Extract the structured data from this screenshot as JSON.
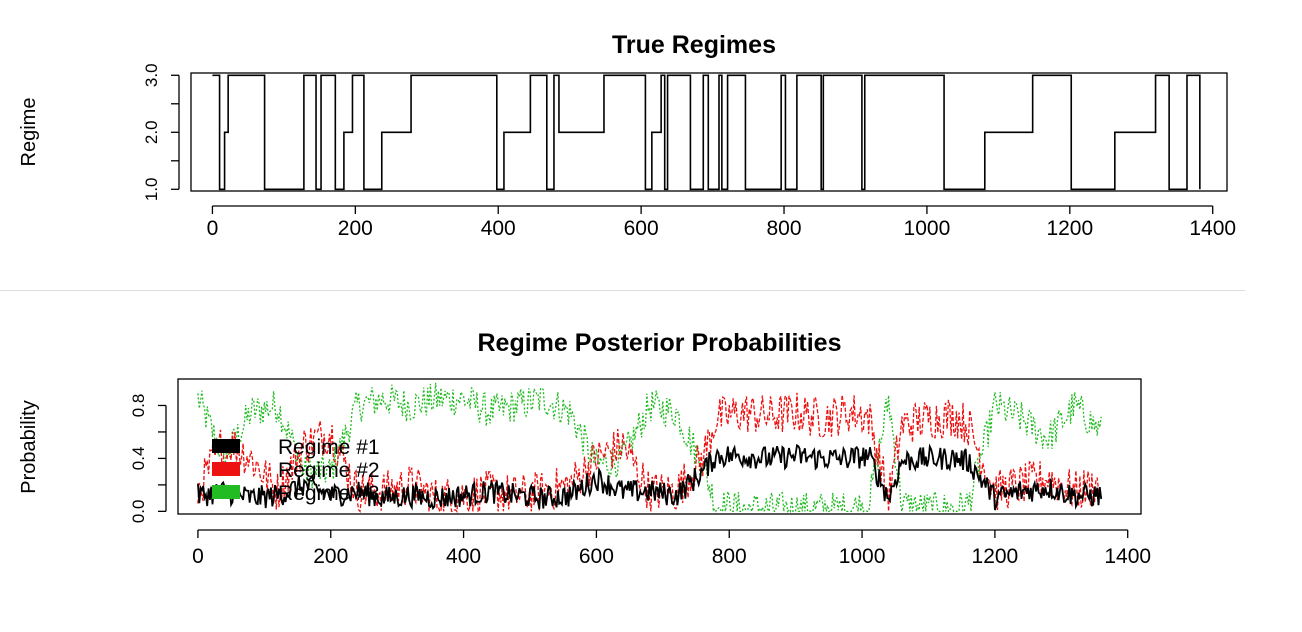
{
  "chart_data": [
    {
      "type": "line",
      "title": "True Regimes",
      "xlabel": "",
      "ylabel": "Regime",
      "xlim": [
        -30,
        1420
      ],
      "ylim": [
        0.97,
        3.04
      ],
      "grid": false,
      "x_ticks": [
        0,
        200,
        400,
        600,
        800,
        1000,
        1200,
        1400
      ],
      "x_tick_labels": [
        "0",
        "200",
        "400",
        "600",
        "800",
        "1000",
        "1200",
        "1400"
      ],
      "y_ticks": [
        1.0,
        1.5,
        2.0,
        2.5,
        3.0
      ],
      "y_tick_labels": [
        "1.0",
        "",
        "2.0",
        "",
        "3.0"
      ],
      "series": [
        {
          "color": "#000000",
          "step": true,
          "x": [
            0,
            10,
            17,
            22,
            28,
            73,
            128,
            145,
            152,
            172,
            184,
            196,
            212,
            237,
            278,
            398,
            408,
            419,
            445,
            468,
            478,
            485,
            548,
            606,
            615,
            628,
            633,
            637,
            669,
            687,
            694,
            709,
            713,
            721,
            746,
            796,
            802,
            818,
            852,
            855,
            909,
            913,
            1024,
            1081,
            1148,
            1202,
            1263,
            1320,
            1339,
            1364,
            1382
          ],
          "y": [
            3,
            1,
            2,
            3,
            3,
            1,
            3,
            1,
            3,
            1,
            2,
            3,
            1,
            2,
            3,
            1,
            2,
            2,
            3,
            1,
            3,
            2,
            3,
            1,
            2,
            3,
            1,
            3,
            1,
            3,
            1,
            3,
            1,
            3,
            1,
            3,
            1,
            3,
            1,
            3,
            1,
            3,
            1,
            2,
            3,
            1,
            2,
            3,
            1,
            3,
            1
          ]
        }
      ]
    },
    {
      "type": "line",
      "title": "Regime Posterior Probabilities",
      "xlabel": "",
      "ylabel": "Probability",
      "xlim": [
        -30,
        1420
      ],
      "ylim": [
        -0.02,
        1.0
      ],
      "grid": false,
      "x_ticks": [
        0,
        200,
        400,
        600,
        800,
        1000,
        1200,
        1400
      ],
      "x_tick_labels": [
        "0",
        "200",
        "400",
        "600",
        "800",
        "1000",
        "1200",
        "1400"
      ],
      "y_ticks": [
        0.0,
        0.2,
        0.4,
        0.6,
        0.8
      ],
      "y_tick_labels": [
        "0.0",
        "",
        "0.4",
        "",
        "0.8"
      ],
      "legend": {
        "placement": "left",
        "entries": [
          {
            "name": "Regime #1",
            "color": "#000000"
          },
          {
            "name": "Regime #2",
            "color": "#ee1111"
          },
          {
            "name": "Regime #3",
            "color": "#22bb22"
          }
        ]
      },
      "series": [
        {
          "name": "Regime #1",
          "color": "#000000",
          "style": "solid",
          "x": [
            0,
            40,
            80,
            120,
            160,
            200,
            240,
            280,
            320,
            360,
            400,
            440,
            480,
            520,
            560,
            600,
            640,
            680,
            720,
            760,
            780,
            820,
            860,
            900,
            940,
            980,
            1010,
            1040,
            1060,
            1100,
            1140,
            1160,
            1200,
            1240,
            1280,
            1320,
            1360
          ],
          "y": [
            0.12,
            0.15,
            0.1,
            0.12,
            0.2,
            0.12,
            0.15,
            0.1,
            0.12,
            0.1,
            0.12,
            0.15,
            0.12,
            0.1,
            0.12,
            0.25,
            0.15,
            0.15,
            0.12,
            0.3,
            0.42,
            0.42,
            0.4,
            0.42,
            0.4,
            0.4,
            0.42,
            0.1,
            0.38,
            0.4,
            0.4,
            0.38,
            0.1,
            0.15,
            0.18,
            0.12,
            0.12
          ]
        },
        {
          "name": "Regime #2",
          "color": "#ee1111",
          "style": "dashed",
          "x": [
            0,
            40,
            80,
            120,
            160,
            200,
            240,
            280,
            320,
            360,
            400,
            440,
            480,
            520,
            560,
            600,
            640,
            680,
            720,
            760,
            780,
            820,
            860,
            900,
            940,
            980,
            1010,
            1040,
            1060,
            1100,
            1140,
            1160,
            1200,
            1240,
            1280,
            1320,
            1360
          ],
          "y": [
            0.15,
            0.55,
            0.4,
            0.15,
            0.5,
            0.6,
            0.15,
            0.15,
            0.2,
            0.1,
            0.12,
            0.15,
            0.12,
            0.15,
            0.2,
            0.4,
            0.5,
            0.15,
            0.15,
            0.4,
            0.7,
            0.75,
            0.72,
            0.75,
            0.7,
            0.75,
            0.72,
            0.1,
            0.65,
            0.7,
            0.72,
            0.65,
            0.15,
            0.2,
            0.25,
            0.15,
            0.2
          ]
        },
        {
          "name": "Regime #3",
          "color": "#22bb22",
          "style": "dotted",
          "x": [
            0,
            40,
            80,
            120,
            160,
            200,
            240,
            280,
            320,
            360,
            400,
            440,
            480,
            520,
            560,
            600,
            640,
            680,
            720,
            760,
            780,
            820,
            860,
            900,
            940,
            980,
            1010,
            1040,
            1060,
            1100,
            1140,
            1160,
            1200,
            1240,
            1280,
            1320,
            1360
          ],
          "y": [
            0.85,
            0.4,
            0.75,
            0.8,
            0.3,
            0.3,
            0.8,
            0.85,
            0.8,
            0.85,
            0.85,
            0.75,
            0.8,
            0.85,
            0.75,
            0.35,
            0.4,
            0.8,
            0.75,
            0.35,
            0.05,
            0.02,
            0.02,
            0.02,
            0.02,
            0.02,
            0.05,
            0.85,
            0.05,
            0.02,
            0.02,
            0.05,
            0.8,
            0.7,
            0.55,
            0.8,
            0.6
          ]
        }
      ]
    }
  ]
}
